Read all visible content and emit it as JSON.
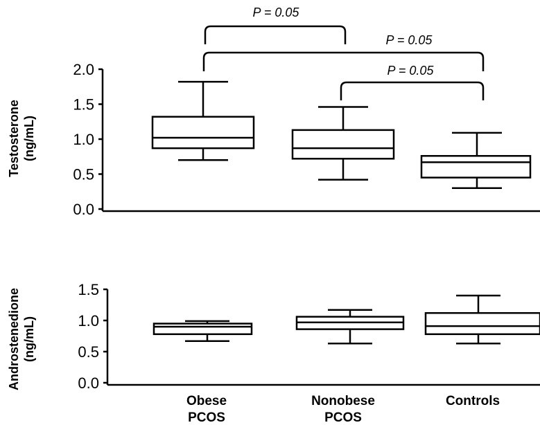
{
  "chart_data": [
    {
      "type": "box",
      "ylabel_line1": "Testosterone",
      "ylabel_line2": "(ng/mL)",
      "ylim": [
        0,
        2.0
      ],
      "yticks": [
        "0.0",
        "0.5",
        "1.0",
        "1.5",
        "2.0"
      ],
      "categories": [
        "Obese PCOS",
        "Nonobese PCOS",
        "Controls"
      ],
      "boxes": [
        {
          "min": 0.7,
          "q1": 0.87,
          "median": 1.02,
          "q3": 1.32,
          "max": 1.82
        },
        {
          "min": 0.42,
          "q1": 0.72,
          "median": 0.87,
          "q3": 1.13,
          "max": 1.46
        },
        {
          "min": 0.3,
          "q1": 0.45,
          "median": 0.67,
          "q3": 0.76,
          "max": 1.09
        }
      ],
      "comparisons": [
        {
          "from": 0,
          "to": 1,
          "label": "P = 0.05"
        },
        {
          "from": 0,
          "to": 2,
          "label": "P = 0.05"
        },
        {
          "from": 1,
          "to": 2,
          "label": "P = 0.05"
        }
      ]
    },
    {
      "type": "box",
      "ylabel_line1": "Androstenedione",
      "ylabel_line2": "(ng/mL)",
      "ylim": [
        0,
        1.5
      ],
      "yticks": [
        "0.0",
        "0.5",
        "1.0",
        "1.5"
      ],
      "categories": [
        "Obese PCOS",
        "Nonobese PCOS",
        "Controls"
      ],
      "boxes": [
        {
          "min": 0.67,
          "q1": 0.78,
          "median": 0.9,
          "q3": 0.95,
          "max": 0.99
        },
        {
          "min": 0.63,
          "q1": 0.86,
          "median": 0.97,
          "q3": 1.06,
          "max": 1.17
        },
        {
          "min": 0.63,
          "q1": 0.78,
          "median": 0.91,
          "q3": 1.12,
          "max": 1.4
        }
      ]
    }
  ],
  "x_categories": [
    {
      "line1": "Obese",
      "line2": "PCOS"
    },
    {
      "line1": "Nonobese",
      "line2": "PCOS"
    },
    {
      "line1": "Controls",
      "line2": ""
    }
  ]
}
